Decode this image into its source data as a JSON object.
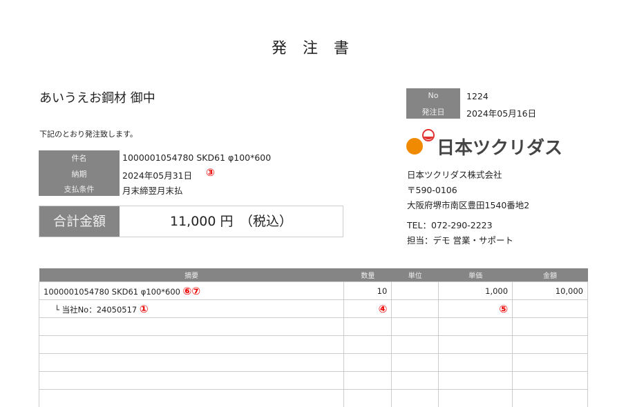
{
  "title": "発 注 書",
  "recipient": "あいうえお鋼材 御中",
  "intro": "下記のとおり発注致します。",
  "info": [
    {
      "label": "件名",
      "value": "1000001054780 SKD61 φ100*600"
    },
    {
      "label": "納期",
      "value": "2024年05月31日",
      "marker": "③"
    },
    {
      "label": "支払条件",
      "value": "月末締翌月末払"
    }
  ],
  "total": {
    "label": "合計金額",
    "value": "11,000 円　（税込）"
  },
  "order": {
    "no_label": "No",
    "no": "1224",
    "date_label": "発注日",
    "date": "2024年05月16日"
  },
  "company": {
    "logo_text": "日本ツクリダス",
    "name": "日本ツクリダス株式会社",
    "zip": "〒590-0106",
    "address": "大阪府堺市南区豊田1540番地2",
    "tel": "TEL：072-290-2223",
    "contact": "担当：デモ 営業・サポート"
  },
  "table": {
    "headers": [
      "摘要",
      "数量",
      "単位",
      "単価",
      "金額"
    ],
    "row1": {
      "desc": "1000001054780 SKD61 φ100*600",
      "marker": "⑥⑦",
      "qty": "10",
      "unit": "",
      "price": "1,000",
      "amount": "10,000"
    },
    "row2": {
      "desc": "└ 当社No：24050517",
      "marker": "①",
      "qty_marker": "④",
      "price_marker": "⑤"
    }
  },
  "colors": {
    "label_bg": "#858585",
    "marker": "#e00000",
    "logo_orange": "#f08a00"
  }
}
